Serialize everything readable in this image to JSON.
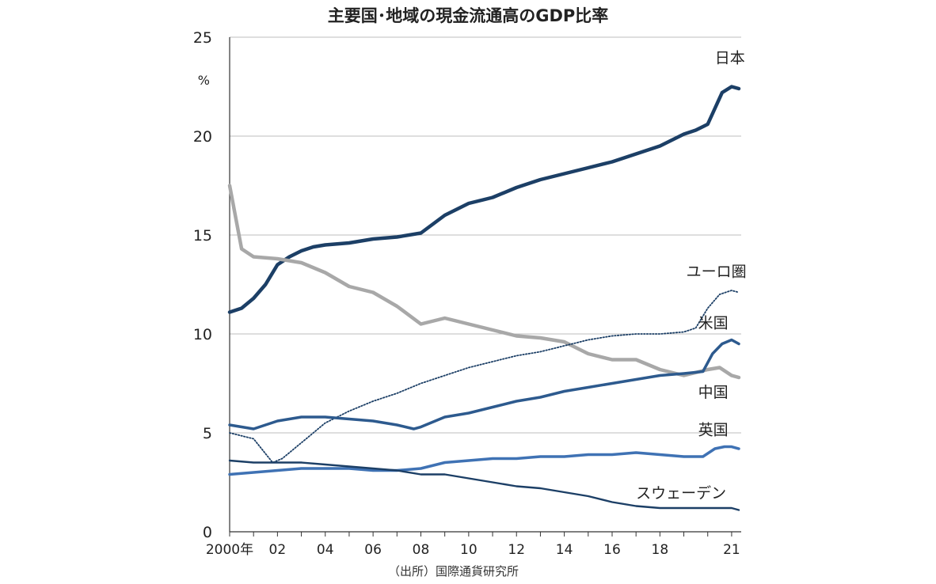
{
  "chart_data": {
    "type": "line",
    "title": "主要国･地域の現金流通高のGDP比率",
    "ylabel": "%",
    "source": "（出所）国際通貨研究所",
    "ylim": [
      0,
      25
    ],
    "xlim": [
      2000,
      2021.4
    ],
    "yticks": [
      {
        "value": 0,
        "label": "0"
      },
      {
        "value": 5,
        "label": "5"
      },
      {
        "value": 10,
        "label": "10"
      },
      {
        "value": 15,
        "label": "15"
      },
      {
        "value": 20,
        "label": "20"
      },
      {
        "value": 25,
        "label": "25"
      }
    ],
    "xticks": [
      {
        "value": 2000,
        "label": "2000年"
      },
      {
        "value": 2002,
        "label": "02"
      },
      {
        "value": 2004,
        "label": "04"
      },
      {
        "value": 2006,
        "label": "06"
      },
      {
        "value": 2008,
        "label": "08"
      },
      {
        "value": 2010,
        "label": "10"
      },
      {
        "value": 2012,
        "label": "12"
      },
      {
        "value": 2014,
        "label": "14"
      },
      {
        "value": 2016,
        "label": "16"
      },
      {
        "value": 2018,
        "label": "18"
      },
      {
        "value": 2021,
        "label": "21"
      }
    ],
    "grid": true,
    "series": [
      {
        "name": "日本",
        "color": "#1c3f66",
        "style": "thick",
        "x": [
          2000,
          2000.5,
          2001,
          2001.5,
          2002,
          2002.5,
          2003,
          2003.5,
          2004,
          2005,
          2006,
          2007,
          2008,
          2009,
          2010,
          2011,
          2012,
          2013,
          2014,
          2015,
          2016,
          2017,
          2018,
          2019,
          2019.5,
          2020,
          2020.3,
          2020.6,
          2021,
          2021.3
        ],
        "y": [
          11.1,
          11.3,
          11.8,
          12.5,
          13.5,
          13.9,
          14.2,
          14.4,
          14.5,
          14.6,
          14.8,
          14.9,
          15.1,
          16.0,
          16.6,
          16.9,
          17.4,
          17.8,
          18.1,
          18.4,
          18.7,
          19.1,
          19.5,
          20.1,
          20.3,
          20.6,
          21.4,
          22.2,
          22.5,
          22.4
        ]
      },
      {
        "name": "中国",
        "color": "#a8a8a8",
        "style": "thick",
        "x": [
          2000,
          2000.5,
          2001,
          2002,
          2003,
          2004,
          2005,
          2006,
          2007,
          2008,
          2009,
          2010,
          2011,
          2012,
          2013,
          2014,
          2015,
          2016,
          2017,
          2018,
          2019,
          2020,
          2020.5,
          2021,
          2021.3
        ],
        "y": [
          17.5,
          14.3,
          13.9,
          13.8,
          13.6,
          13.1,
          12.4,
          12.1,
          11.4,
          10.5,
          10.8,
          10.5,
          10.2,
          9.9,
          9.8,
          9.6,
          9.0,
          8.7,
          8.7,
          8.2,
          7.9,
          8.2,
          8.3,
          7.9,
          7.8
        ]
      },
      {
        "name": "ユーロ圏",
        "color": "#1c3f66",
        "style": "dotted",
        "x": [
          2000,
          2001,
          2001.8,
          2002.2,
          2003,
          2004,
          2005,
          2006,
          2007,
          2008,
          2009,
          2010,
          2011,
          2012,
          2013,
          2014,
          2015,
          2016,
          2017,
          2018,
          2019,
          2019.5,
          2020,
          2020.5,
          2021,
          2021.3
        ],
        "y": [
          5.0,
          4.7,
          3.5,
          3.7,
          4.5,
          5.5,
          6.1,
          6.6,
          7.0,
          7.5,
          7.9,
          8.3,
          8.6,
          8.9,
          9.1,
          9.4,
          9.7,
          9.9,
          10.0,
          10.0,
          10.1,
          10.3,
          11.3,
          12.0,
          12.2,
          12.1
        ]
      },
      {
        "name": "米国",
        "color": "#2d5a8e",
        "style": "medium",
        "x": [
          2000,
          2001,
          2002,
          2003,
          2004,
          2005,
          2006,
          2007,
          2007.7,
          2008,
          2009,
          2010,
          2011,
          2012,
          2013,
          2014,
          2015,
          2016,
          2017,
          2018,
          2019,
          2019.8,
          2020.2,
          2020.6,
          2021,
          2021.3
        ],
        "y": [
          5.4,
          5.2,
          5.6,
          5.8,
          5.8,
          5.7,
          5.6,
          5.4,
          5.2,
          5.3,
          5.8,
          6.0,
          6.3,
          6.6,
          6.8,
          7.1,
          7.3,
          7.5,
          7.7,
          7.9,
          8.0,
          8.1,
          9.0,
          9.5,
          9.7,
          9.5
        ]
      },
      {
        "name": "英国",
        "color": "#3f72b4",
        "style": "medium",
        "x": [
          2000,
          2001,
          2002,
          2003,
          2004,
          2005,
          2006,
          2007,
          2008,
          2009,
          2010,
          2011,
          2012,
          2013,
          2014,
          2015,
          2016,
          2017,
          2018,
          2019,
          2019.8,
          2020.3,
          2020.7,
          2021,
          2021.3
        ],
        "y": [
          2.9,
          3.0,
          3.1,
          3.2,
          3.2,
          3.2,
          3.1,
          3.1,
          3.2,
          3.5,
          3.6,
          3.7,
          3.7,
          3.8,
          3.8,
          3.9,
          3.9,
          4.0,
          3.9,
          3.8,
          3.8,
          4.2,
          4.3,
          4.3,
          4.2
        ]
      },
      {
        "name": "スウェーデン",
        "color": "#1c3f66",
        "style": "thin",
        "x": [
          2000,
          2001,
          2002,
          2003,
          2004,
          2005,
          2006,
          2007,
          2008,
          2009,
          2010,
          2011,
          2012,
          2013,
          2014,
          2015,
          2016,
          2017,
          2018,
          2019,
          2020,
          2021,
          2021.3
        ],
        "y": [
          3.6,
          3.5,
          3.5,
          3.5,
          3.4,
          3.3,
          3.2,
          3.1,
          2.9,
          2.9,
          2.7,
          2.5,
          2.3,
          2.2,
          2.0,
          1.8,
          1.5,
          1.3,
          1.2,
          1.2,
          1.2,
          1.2,
          1.1
        ]
      }
    ],
    "labels": [
      {
        "series": "日本",
        "x": 2020.3,
        "y": 23.7
      },
      {
        "series": "ユーロ圏",
        "x": 2019.1,
        "y": 12.9
      },
      {
        "series": "米国",
        "x": 2019.6,
        "y": 10.3
      },
      {
        "series": "中国",
        "x": 2019.6,
        "y": 6.8
      },
      {
        "series": "英国",
        "x": 2019.6,
        "y": 4.9
      },
      {
        "series": "スウェーデン",
        "x": 2017.0,
        "y": 1.7
      }
    ]
  }
}
